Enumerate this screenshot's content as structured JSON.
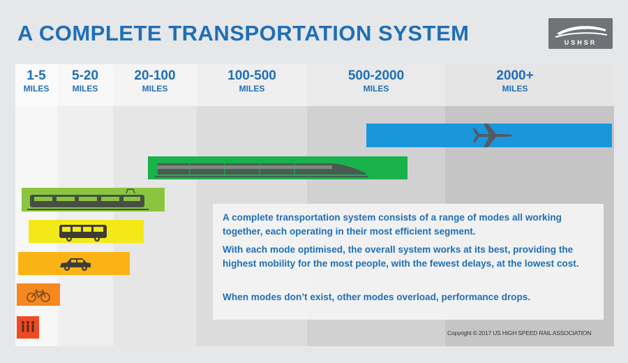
{
  "title": "A COMPLETE TRANSPORTATION SYSTEM",
  "logo": {
    "text": "USHSR"
  },
  "zones": [
    {
      "range": "1-5",
      "unit": "MILES"
    },
    {
      "range": "5-20",
      "unit": "MILES"
    },
    {
      "range": "20-100",
      "unit": "MILES"
    },
    {
      "range": "100-500",
      "unit": "MILES"
    },
    {
      "range": "500-2000",
      "unit": "MILES"
    },
    {
      "range": "2000+",
      "unit": "MILES"
    }
  ],
  "modes": [
    {
      "icon": "airplane-icon",
      "color": "#1a96dc"
    },
    {
      "icon": "high-speed-train-icon",
      "color": "#19b24b"
    },
    {
      "icon": "tram-icon",
      "color": "#8bc53f"
    },
    {
      "icon": "bus-icon",
      "color": "#f4e918"
    },
    {
      "icon": "car-icon",
      "color": "#f9b315"
    },
    {
      "icon": "bicycle-icon",
      "color": "#f5881f"
    },
    {
      "icon": "pedestrians-icon",
      "color": "#ef4a23"
    }
  ],
  "description": {
    "p1": "A complete transportation system consists of a range of modes all working together, each operating in their most efficient segment.",
    "p2": "With each mode optimised, the overall system works at its best, providing the highest mobility for the most people, with the fewest delays, at the lowest cost.",
    "p3": "When modes don’t exist, other modes overload, performance drops."
  },
  "copyright": "Copyright © 2017 US HIGH SPEED RAIL ASSOCIATION"
}
